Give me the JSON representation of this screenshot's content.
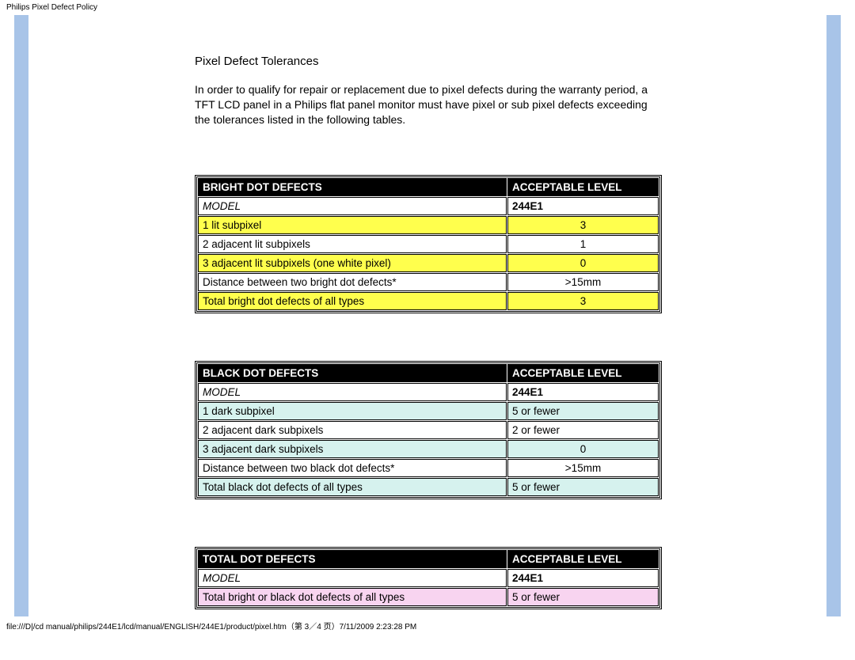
{
  "page_header": "Philips Pixel Defect Policy",
  "section": {
    "title": "Pixel Defect Tolerances",
    "body": "In order to qualify for repair or replacement due to pixel defects during the warranty period, a TFT LCD panel in a Philips flat panel monitor must have pixel or sub pixel defects exceeding the tolerances listed in the following tables."
  },
  "colors": {
    "sidebar": "#a8c4e8",
    "header_bg": "#000000",
    "header_fg": "#ffffff",
    "yellow": "#ffff4d",
    "cyan": "#d6f2ee",
    "pink": "#f8d4f0",
    "white": "#ffffff",
    "border": "#000000"
  },
  "tables": [
    {
      "header_left": "BRIGHT DOT DEFECTS",
      "header_right": "ACCEPTABLE LEVEL",
      "model_label": "MODEL",
      "model_value": "244E1",
      "highlight": "#ffff4d",
      "rows": [
        {
          "left": "1 lit subpixel",
          "right": "3",
          "hl": true,
          "center": true
        },
        {
          "left": "2 adjacent lit subpixels",
          "right": "1",
          "hl": false,
          "center": true
        },
        {
          "left": "3 adjacent lit subpixels (one white pixel)",
          "right": "0",
          "hl": true,
          "center": true
        },
        {
          "left": "Distance between two bright dot defects*",
          "right": ">15mm",
          "hl": false,
          "center": true
        },
        {
          "left": "Total bright dot defects of all types",
          "right": "3",
          "hl": true,
          "center": true
        }
      ]
    },
    {
      "header_left": "BLACK DOT DEFECTS",
      "header_right": "ACCEPTABLE LEVEL",
      "model_label": "MODEL",
      "model_value": "244E1",
      "highlight": "#d6f2ee",
      "rows": [
        {
          "left": "1 dark subpixel",
          "right": "5 or fewer",
          "hl": true,
          "center": false
        },
        {
          "left": "2 adjacent dark subpixels",
          "right": "2 or fewer",
          "hl": false,
          "center": false
        },
        {
          "left": "3 adjacent dark subpixels",
          "right": "0",
          "hl": true,
          "center": true
        },
        {
          "left": "Distance between two black dot defects*",
          "right": ">15mm",
          "hl": false,
          "center": true
        },
        {
          "left": "Total black dot defects of all types",
          "right": "5 or fewer",
          "hl": true,
          "center": false
        }
      ]
    },
    {
      "header_left": "TOTAL DOT DEFECTS",
      "header_right": "ACCEPTABLE LEVEL",
      "model_label": "MODEL",
      "model_value": "244E1",
      "highlight": "#f8d4f0",
      "rows": [
        {
          "left": "Total bright or black dot defects of all types",
          "right": "5 or fewer",
          "hl": true,
          "center": false
        }
      ]
    }
  ],
  "footer_path": "file:///D|/cd manual/philips/244E1/lcd/manual/ENGLISH/244E1/product/pixel.htm（第 3／4 页）7/11/2009 2:23:28 PM"
}
